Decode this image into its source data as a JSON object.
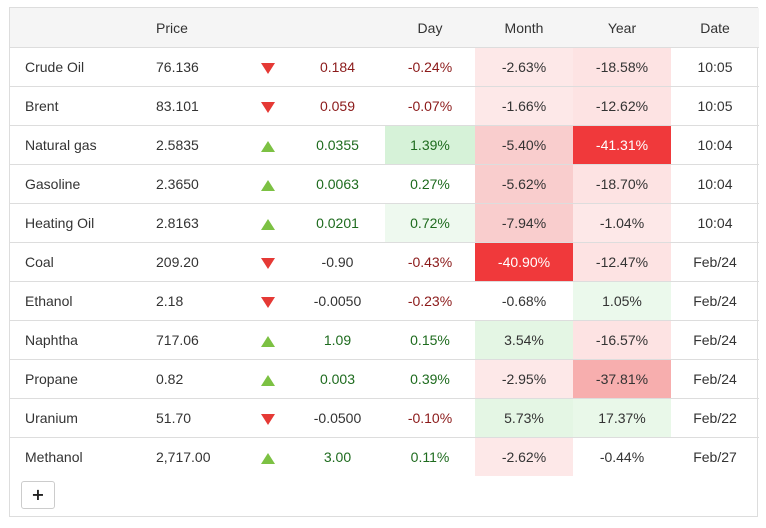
{
  "header": {
    "name": "",
    "price": "Price",
    "arrow": "",
    "change": "",
    "day": "Day",
    "month": "Month",
    "year": "Year",
    "date": "Date"
  },
  "rows": [
    {
      "name": "Crude Oil",
      "price": "76.136",
      "dir": "down",
      "change": "0.184",
      "day": "-0.24%",
      "month": "-2.63%",
      "year": "-18.58%",
      "date": "10:05"
    },
    {
      "name": "Brent",
      "price": "83.101",
      "dir": "down",
      "change": "0.059",
      "day": "-0.07%",
      "month": "-1.66%",
      "year": "-12.62%",
      "date": "10:05"
    },
    {
      "name": "Natural gas",
      "price": "2.5835",
      "dir": "up",
      "change": "0.0355",
      "day": "1.39%",
      "month": "-5.40%",
      "year": "-41.31%",
      "date": "10:04"
    },
    {
      "name": "Gasoline",
      "price": "2.3650",
      "dir": "up",
      "change": "0.0063",
      "day": "0.27%",
      "month": "-5.62%",
      "year": "-18.70%",
      "date": "10:04"
    },
    {
      "name": "Heating Oil",
      "price": "2.8163",
      "dir": "up",
      "change": "0.0201",
      "day": "0.72%",
      "month": "-7.94%",
      "year": "-1.04%",
      "date": "10:04"
    },
    {
      "name": "Coal",
      "price": "209.20",
      "dir": "down",
      "change": "-0.90",
      "day": "-0.43%",
      "month": "-40.90%",
      "year": "-12.47%",
      "date": "Feb/24"
    },
    {
      "name": "Ethanol",
      "price": "2.18",
      "dir": "down",
      "change": "-0.0050",
      "day": "-0.23%",
      "month": "-0.68%",
      "year": "1.05%",
      "date": "Feb/24"
    },
    {
      "name": "Naphtha",
      "price": "717.06",
      "dir": "up",
      "change": "1.09",
      "day": "0.15%",
      "month": "3.54%",
      "year": "-16.57%",
      "date": "Feb/24"
    },
    {
      "name": "Propane",
      "price": "0.82",
      "dir": "up",
      "change": "0.003",
      "day": "0.39%",
      "month": "-2.95%",
      "year": "-37.81%",
      "date": "Feb/24"
    },
    {
      "name": "Uranium",
      "price": "51.70",
      "dir": "down",
      "change": "-0.0500",
      "day": "-0.10%",
      "month": "5.73%",
      "year": "17.37%",
      "date": "Feb/22"
    },
    {
      "name": "Methanol",
      "price": "2,717.00",
      "dir": "up",
      "change": "3.00",
      "day": "0.11%",
      "month": "-2.62%",
      "year": "-0.44%",
      "date": "Feb/27"
    }
  ],
  "add_button": {
    "label": "+"
  },
  "colors": {
    "up_arrow": "#7cc143",
    "down_arrow": "#e53935",
    "header_bg": "#f5f5f5",
    "border": "#dddddd"
  }
}
